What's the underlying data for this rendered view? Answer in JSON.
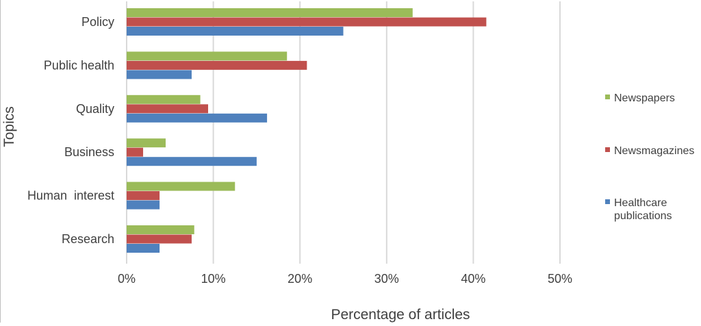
{
  "chart_data": {
    "type": "bar",
    "orientation": "horizontal",
    "title": "",
    "xlabel": "Percentage of articles",
    "ylabel": "Topics",
    "categories": [
      "Policy",
      "Public health",
      "Quality",
      "Business",
      "Human  interest",
      "Research"
    ],
    "x_ticks": [
      "0%",
      "10%",
      "20%",
      "30%",
      "40%",
      "50%"
    ],
    "xlim": [
      0,
      50
    ],
    "grid": "vertical",
    "legend_position": "right",
    "series": [
      {
        "name": "Newspapers",
        "color": "#9BBB59",
        "values": [
          33.0,
          18.5,
          8.5,
          4.5,
          12.5,
          7.8
        ]
      },
      {
        "name": "Newsmagazines",
        "color": "#C0504D",
        "values": [
          41.5,
          20.8,
          9.4,
          1.9,
          3.8,
          7.5
        ]
      },
      {
        "name": "Healthcare\npublications",
        "color": "#4F81BD",
        "values": [
          25.0,
          7.5,
          16.2,
          15.0,
          3.8,
          3.8
        ]
      }
    ]
  }
}
